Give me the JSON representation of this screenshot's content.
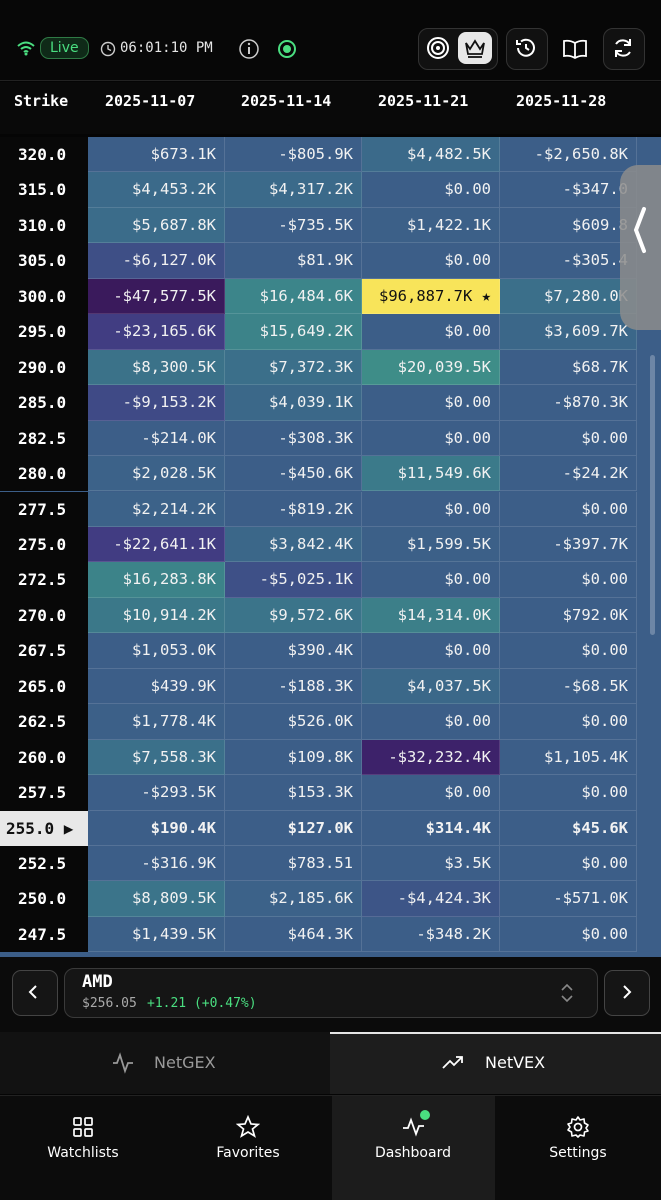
{
  "header": {
    "status": "Live",
    "time": "06:01:10 PM"
  },
  "table": {
    "columns": [
      "Strike",
      "2025-11-07",
      "2025-11-14",
      "2025-11-21",
      "2025-11-28"
    ],
    "rows": [
      {
        "strike": "320.0",
        "cells": [
          "$673.1K",
          "-$805.9K",
          "$4,482.5K",
          "-$2,650.8K"
        ],
        "colors": [
          "#3c5e88",
          "#3c5e88",
          "#3b6a8a",
          "#3c5e88"
        ]
      },
      {
        "strike": "315.0",
        "cells": [
          "$4,453.2K",
          "$4,317.2K",
          "$0.00",
          "-$347.0"
        ],
        "colors": [
          "#3b6a8a",
          "#3b6a8a",
          "#3c5e88",
          "#3c5e88"
        ]
      },
      {
        "strike": "310.0",
        "cells": [
          "$5,687.8K",
          "-$735.5K",
          "$1,422.1K",
          "$609.8"
        ],
        "colors": [
          "#3b6c8a",
          "#3c5e88",
          "#3c6088",
          "#3c5e88"
        ]
      },
      {
        "strike": "305.0",
        "cells": [
          "-$6,127.0K",
          "$81.9K",
          "$0.00",
          "-$305.4"
        ],
        "colors": [
          "#3e4f86",
          "#3c5e88",
          "#3c5e88",
          "#3c5e88"
        ]
      },
      {
        "strike": "300.0",
        "cells": [
          "-$47,577.5K",
          "$16,484.6K",
          "$96,887.7K ★",
          "$7,280.0K"
        ],
        "colors": [
          "#3a1a5c",
          "#3c858a",
          "#f8e45a",
          "#3b6f8a"
        ]
      },
      {
        "strike": "295.0",
        "cells": [
          "-$23,165.6K",
          "$15,649.2K",
          "$0.00",
          "$3,609.7K"
        ],
        "colors": [
          "#413d82",
          "#3c8389",
          "#3c5e88",
          "#3b6789"
        ]
      },
      {
        "strike": "290.0",
        "cells": [
          "$8,300.5K",
          "$7,372.3K",
          "$20,039.5K",
          "$68.7K"
        ],
        "colors": [
          "#3b7289",
          "#3b6f8a",
          "#3e8d88",
          "#3c5e88"
        ]
      },
      {
        "strike": "285.0",
        "cells": [
          "-$9,153.2K",
          "$4,039.1K",
          "$0.00",
          "-$870.3K"
        ],
        "colors": [
          "#3f4a86",
          "#3b6889",
          "#3c5e88",
          "#3c5e88"
        ]
      },
      {
        "strike": "282.5",
        "cells": [
          "-$214.0K",
          "-$308.3K",
          "$0.00",
          "$0.00"
        ],
        "colors": [
          "#3c5e88",
          "#3c5e88",
          "#3c5e88",
          "#3c5e88"
        ]
      },
      {
        "strike": "280.0",
        "cells": [
          "$2,028.5K",
          "-$450.6K",
          "$11,549.6K",
          "-$24.2K"
        ],
        "colors": [
          "#3c6289",
          "#3c5e88",
          "#3b7a8a",
          "#3c5e88"
        ]
      },
      {
        "strike": "277.5",
        "cells": [
          "$2,214.2K",
          "-$819.2K",
          "$0.00",
          "$0.00"
        ],
        "colors": [
          "#3c6289",
          "#3c5e88",
          "#3c5e88",
          "#3c5e88"
        ]
      },
      {
        "strike": "275.0",
        "cells": [
          "-$22,641.1K",
          "$3,842.4K",
          "$1,599.5K",
          "-$397.7K"
        ],
        "colors": [
          "#413c82",
          "#3b6789",
          "#3c6088",
          "#3c5e88"
        ]
      },
      {
        "strike": "272.5",
        "cells": [
          "$16,283.8K",
          "-$5,025.1K",
          "$0.00",
          "$0.00"
        ],
        "colors": [
          "#3c8389",
          "#3e5087",
          "#3c5e88",
          "#3c5e88"
        ]
      },
      {
        "strike": "270.0",
        "cells": [
          "$10,914.2K",
          "$9,572.6K",
          "$14,314.0K",
          "$792.0K"
        ],
        "colors": [
          "#3b7889",
          "#3b748a",
          "#3c7f89",
          "#3c5e88"
        ]
      },
      {
        "strike": "267.5",
        "cells": [
          "$1,053.0K",
          "$390.4K",
          "$0.00",
          "$0.00"
        ],
        "colors": [
          "#3c5e88",
          "#3c5e88",
          "#3c5e88",
          "#3c5e88"
        ]
      },
      {
        "strike": "265.0",
        "cells": [
          "$439.9K",
          "-$188.3K",
          "$4,037.5K",
          "-$68.5K"
        ],
        "colors": [
          "#3c5e88",
          "#3c5e88",
          "#3b6889",
          "#3c5e88"
        ]
      },
      {
        "strike": "262.5",
        "cells": [
          "$1,778.4K",
          "$526.0K",
          "$0.00",
          "$0.00"
        ],
        "colors": [
          "#3c6088",
          "#3c5e88",
          "#3c5e88",
          "#3c5e88"
        ]
      },
      {
        "strike": "260.0",
        "cells": [
          "$7,558.3K",
          "$109.8K",
          "-$32,232.4K",
          "$1,105.4K"
        ],
        "colors": [
          "#3b708a",
          "#3c5e88",
          "#3d226a",
          "#3c5e88"
        ]
      },
      {
        "strike": "257.5",
        "cells": [
          "-$293.5K",
          "$153.3K",
          "$0.00",
          "$0.00"
        ],
        "colors": [
          "#3c5e88",
          "#3c5e88",
          "#3c5e88",
          "#3c5e88"
        ]
      },
      {
        "strike": "255.0 ▶",
        "current": true,
        "cells": [
          "$190.4K",
          "$127.0K",
          "$314.4K",
          "$45.6K"
        ],
        "colors": [
          "#3c5e88",
          "#3c5e88",
          "#3c5e88",
          "#3c5e88"
        ]
      },
      {
        "strike": "252.5",
        "cells": [
          "-$316.9K",
          "$783.51",
          "$3.5K",
          "$0.00"
        ],
        "colors": [
          "#3c5e88",
          "#3c5e88",
          "#3c5e88",
          "#3c5e88"
        ]
      },
      {
        "strike": "250.0",
        "cells": [
          "$8,809.5K",
          "$2,185.6K",
          "-$4,424.3K",
          "-$571.0K"
        ],
        "colors": [
          "#3b748a",
          "#3c6289",
          "#3d5587",
          "#3c5e88"
        ]
      },
      {
        "strike": "247.5",
        "cells": [
          "$1,439.5K",
          "$464.3K",
          "-$348.2K",
          "$0.00"
        ],
        "colors": [
          "#3c6088",
          "#3c5e88",
          "#3c5e88",
          "#3c5e88"
        ]
      }
    ]
  },
  "ticker": {
    "symbol": "AMD",
    "price": "$256.05",
    "change": "+1.21 (+0.47%)"
  },
  "tabs": [
    "NetGEX",
    "NetVEX"
  ],
  "nav": [
    "Watchlists",
    "Favorites",
    "Dashboard",
    "Settings"
  ]
}
